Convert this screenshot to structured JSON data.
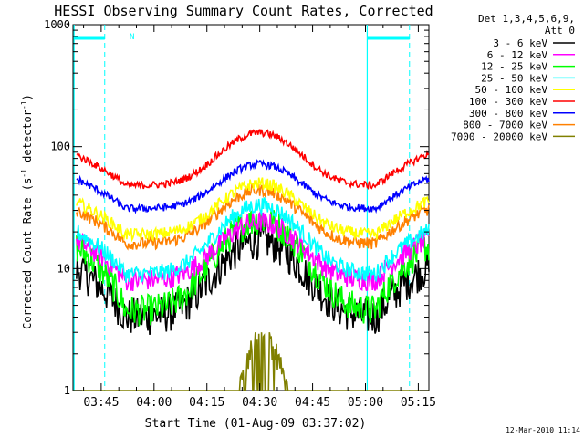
{
  "chart_data": {
    "type": "line",
    "title": "HESSI Observing Summary Count Rates, Corrected",
    "xlabel": "Start Time (01-Aug-09 03:37:02)",
    "ylabel_main": "Corrected Count Rate (s",
    "ylabel_sup1": "-1",
    "ylabel_mid": " detector",
    "ylabel_sup2": "-1",
    "ylabel_end": ")",
    "y_scale": "log",
    "ylim": [
      1,
      1000
    ],
    "xlim_minutes": [
      217,
      318
    ],
    "y_ticks": [
      {
        "v": 1,
        "label": "1"
      },
      {
        "v": 10,
        "label": "10"
      },
      {
        "v": 100,
        "label": "100"
      },
      {
        "v": 1000,
        "label": "1000"
      }
    ],
    "x_ticks": [
      {
        "m": 225,
        "label": "03:45"
      },
      {
        "m": 240,
        "label": "04:00"
      },
      {
        "m": 255,
        "label": "04:15"
      },
      {
        "m": 270,
        "label": "04:30"
      },
      {
        "m": 285,
        "label": "04:45"
      },
      {
        "m": 300,
        "label": "05:00"
      },
      {
        "m": 315,
        "label": "05:15"
      }
    ],
    "legend": {
      "header1": "Det 1,3,4,5,6,9,",
      "header2": "Att 0",
      "placement": "right"
    },
    "series": [
      {
        "name": "3 - 6 keV",
        "color": "#000000",
        "peak": 17,
        "low": 4,
        "low_mid": 10,
        "noise": 0.16
      },
      {
        "name": "6 - 12 keV",
        "color": "#ff00ff",
        "peak": 24,
        "low": 8,
        "low_mid": 17,
        "noise": 0.09
      },
      {
        "name": "12 - 25 keV",
        "color": "#00ff00",
        "peak": 25,
        "low": 4.5,
        "low_mid": 15,
        "noise": 0.13
      },
      {
        "name": "25 - 50 keV",
        "color": "#00ffff",
        "peak": 33,
        "low": 9,
        "low_mid": 20,
        "noise": 0.07
      },
      {
        "name": "50 - 100 keV",
        "color": "#ffff00",
        "peak": 50,
        "low": 19,
        "low_mid": 35,
        "noise": 0.05
      },
      {
        "name": "100 - 300 keV",
        "color": "#ff0000",
        "peak": 130,
        "low": 48,
        "low_mid": 85,
        "noise": 0.03
      },
      {
        "name": "300 - 800 keV",
        "color": "#0000ff",
        "peak": 72,
        "low": 31,
        "low_mid": 54,
        "noise": 0.03
      },
      {
        "name": "800 - 7000 keV",
        "color": "#ff8000",
        "peak": 44,
        "low": 16,
        "low_mid": 30,
        "noise": 0.05
      },
      {
        "name": "7000 - 20000 keV",
        "color": "#808000",
        "peak": 3,
        "low": 1,
        "low_mid": 1,
        "noise": 0.1
      }
    ],
    "saa_flag": "N",
    "vlines_solid_minutes": [
      217.3,
      300.5
    ],
    "vlines_dashed_minutes": [
      226,
      312.5
    ]
  },
  "timestamp": "12-Mar-2010 11:14",
  "colors": {
    "axis": "#000000",
    "saa": "#00ffff",
    "background": "#ffffff"
  }
}
